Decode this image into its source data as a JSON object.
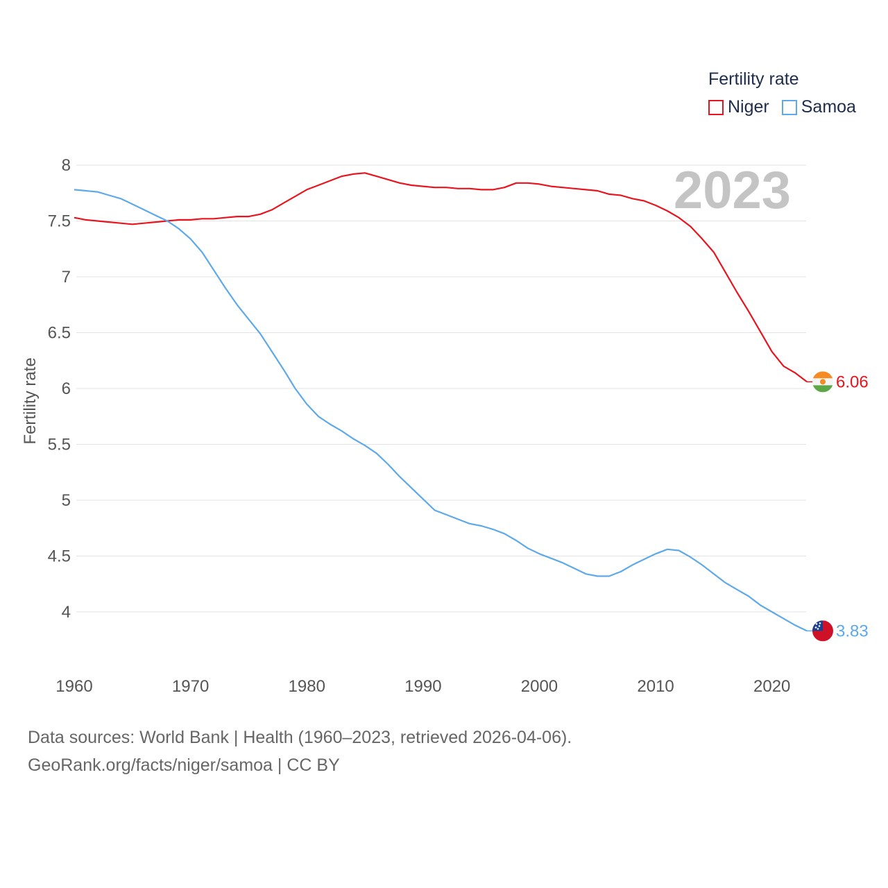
{
  "legend": {
    "title": "Fertility rate",
    "items": [
      {
        "label": "Niger",
        "color": "#e8141e"
      },
      {
        "label": "Samoa",
        "color": "#5da9e9"
      }
    ]
  },
  "year_marker": "2023",
  "footer": {
    "line1": "Data sources: World Bank | Health (1960–2023, retrieved 2026-04-06).",
    "line2": "GeoRank.org/facts/niger/samoa | CC BY"
  },
  "chart_data": {
    "type": "line",
    "title": "",
    "xlabel": "",
    "ylabel": "Fertility rate",
    "xlim": [
      1960,
      2023
    ],
    "ylim": [
      3.6,
      8.2
    ],
    "xticks": [
      1960,
      1970,
      1980,
      1990,
      2000,
      2010,
      2020
    ],
    "yticks": [
      4,
      4.5,
      5,
      5.5,
      6,
      6.5,
      7,
      7.5,
      8
    ],
    "ytick_labels": [
      "4",
      "4.5",
      "5",
      "5.5",
      "6",
      "6.5",
      "7",
      "7.5",
      "8"
    ],
    "grid": true,
    "legend_position": "top-right",
    "x": [
      1960,
      1961,
      1962,
      1963,
      1964,
      1965,
      1966,
      1967,
      1968,
      1969,
      1970,
      1971,
      1972,
      1973,
      1974,
      1975,
      1976,
      1977,
      1978,
      1979,
      1980,
      1981,
      1982,
      1983,
      1984,
      1985,
      1986,
      1987,
      1988,
      1989,
      1990,
      1991,
      1992,
      1993,
      1994,
      1995,
      1996,
      1997,
      1998,
      1999,
      2000,
      2001,
      2002,
      2003,
      2004,
      2005,
      2006,
      2007,
      2008,
      2009,
      2010,
      2011,
      2012,
      2013,
      2014,
      2015,
      2016,
      2017,
      2018,
      2019,
      2020,
      2021,
      2022,
      2023
    ],
    "series": [
      {
        "name": "Niger",
        "color": "#e8141e",
        "end_label": "6.06",
        "values": [
          7.53,
          7.51,
          7.5,
          7.49,
          7.48,
          7.47,
          7.48,
          7.49,
          7.5,
          7.51,
          7.51,
          7.52,
          7.52,
          7.53,
          7.54,
          7.54,
          7.56,
          7.6,
          7.66,
          7.72,
          7.78,
          7.82,
          7.86,
          7.9,
          7.92,
          7.93,
          7.9,
          7.87,
          7.84,
          7.82,
          7.81,
          7.8,
          7.8,
          7.79,
          7.79,
          7.78,
          7.78,
          7.8,
          7.84,
          7.84,
          7.83,
          7.81,
          7.8,
          7.79,
          7.78,
          7.77,
          7.74,
          7.73,
          7.7,
          7.68,
          7.64,
          7.59,
          7.53,
          7.45,
          7.34,
          7.22,
          7.04,
          6.86,
          6.69,
          6.51,
          6.33,
          6.2,
          6.14,
          6.06
        ]
      },
      {
        "name": "Samoa",
        "color": "#5da9e9",
        "end_label": "3.83",
        "values": [
          7.78,
          7.77,
          7.76,
          7.73,
          7.7,
          7.65,
          7.6,
          7.55,
          7.5,
          7.43,
          7.34,
          7.22,
          7.06,
          6.9,
          6.75,
          6.62,
          6.49,
          6.33,
          6.17,
          6.0,
          5.86,
          5.75,
          5.68,
          5.62,
          5.55,
          5.49,
          5.42,
          5.32,
          5.21,
          5.11,
          5.01,
          4.91,
          4.87,
          4.83,
          4.79,
          4.77,
          4.74,
          4.7,
          4.64,
          4.57,
          4.52,
          4.48,
          4.44,
          4.39,
          4.34,
          4.32,
          4.32,
          4.36,
          4.42,
          4.47,
          4.52,
          4.56,
          4.55,
          4.49,
          4.42,
          4.34,
          4.26,
          4.2,
          4.14,
          4.06,
          4.0,
          3.94,
          3.88,
          3.83
        ]
      }
    ]
  }
}
